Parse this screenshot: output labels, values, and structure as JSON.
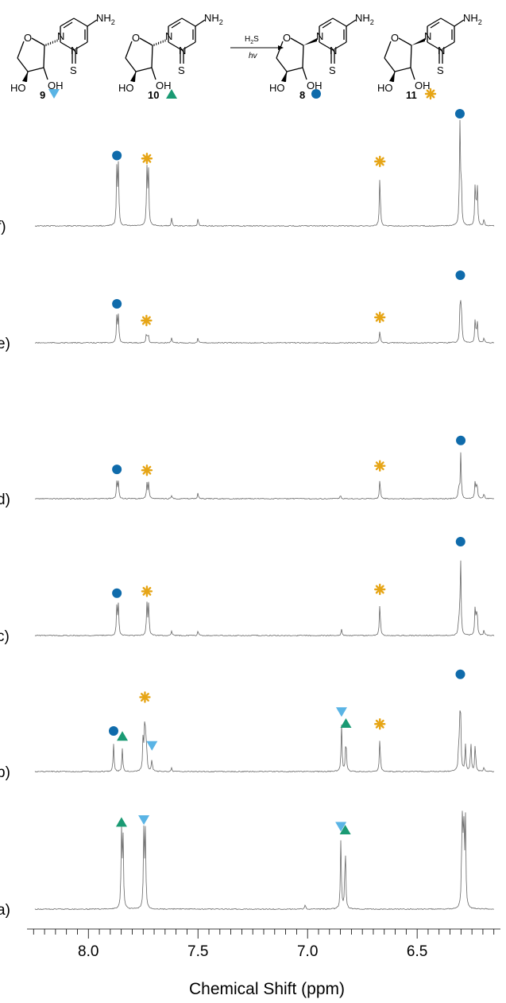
{
  "colors": {
    "compound_8": "#0f6bab",
    "compound_9": "#5ab4e5",
    "compound_10": "#1a9a73",
    "compound_11": "#e6a516"
  },
  "scheme": {
    "compounds": [
      {
        "id": "9",
        "label": "9",
        "marker": "triangle-down",
        "color": "#5ab4e5"
      },
      {
        "id": "10",
        "label": "10",
        "marker": "triangle-up",
        "color": "#1a9a73"
      },
      {
        "id": "8",
        "label": "8",
        "marker": "circle",
        "color": "#0f6bab"
      },
      {
        "id": "11",
        "label": "11",
        "marker": "asterisk",
        "color": "#e6a516"
      }
    ],
    "reagent_top": "H",
    "reagent_sub": "2",
    "reagent_s": "S",
    "reagent_bottom": "hv",
    "nh2": "NH",
    "nh2_sub": "2",
    "ring_n": "N",
    "ring_s": "S",
    "ring_o": "O",
    "oh": "OH",
    "ho": "HO"
  },
  "chart_data": {
    "type": "line",
    "title": "",
    "xlabel": "Chemical Shift (ppm)",
    "ylabel": "",
    "xlim": [
      8.28,
      6.12
    ],
    "x_reversed": true,
    "xticks": [
      8.0,
      7.5,
      7.0,
      6.5
    ],
    "xtick_labels": [
      "8.0",
      "7.5",
      "7.0",
      "6.5"
    ],
    "minor_tick_step": 0.05,
    "series": [
      {
        "name": "f)",
        "label": "f)",
        "peaks": [
          {
            "ppm": 7.87,
            "h": 0.58,
            "marker": "circle"
          },
          {
            "ppm": 7.863,
            "h": 0.58
          },
          {
            "ppm": 7.733,
            "h": 0.55,
            "marker": "asterisk"
          },
          {
            "ppm": 7.726,
            "h": 0.55
          },
          {
            "ppm": 7.62,
            "h": 0.08
          },
          {
            "ppm": 7.5,
            "h": 0.08
          },
          {
            "ppm": 6.67,
            "h": 0.52,
            "marker": "asterisk"
          },
          {
            "ppm": 6.305,
            "h": 1.0,
            "marker": "circle"
          },
          {
            "ppm": 6.299,
            "h": 0.45
          },
          {
            "ppm": 6.235,
            "h": 0.45
          },
          {
            "ppm": 6.226,
            "h": 0.43
          },
          {
            "ppm": 6.195,
            "h": 0.07
          }
        ]
      },
      {
        "name": "e)",
        "label": "e)",
        "peaks": [
          {
            "ppm": 7.87,
            "h": 0.33,
            "marker": "circle"
          },
          {
            "ppm": 7.863,
            "h": 0.33
          },
          {
            "ppm": 7.735,
            "h": 0.12,
            "marker": "asterisk"
          },
          {
            "ppm": 7.727,
            "h": 0.12
          },
          {
            "ppm": 7.62,
            "h": 0.06
          },
          {
            "ppm": 7.5,
            "h": 0.06
          },
          {
            "ppm": 6.67,
            "h": 0.16,
            "marker": "asterisk"
          },
          {
            "ppm": 6.303,
            "h": 0.69,
            "marker": "circle"
          },
          {
            "ppm": 6.297,
            "h": 0.3
          },
          {
            "ppm": 6.235,
            "h": 0.31
          },
          {
            "ppm": 6.226,
            "h": 0.29
          },
          {
            "ppm": 6.195,
            "h": 0.06
          }
        ]
      },
      {
        "name": "d)",
        "label": "d)",
        "peaks": [
          {
            "ppm": 7.87,
            "h": 0.19,
            "marker": "circle"
          },
          {
            "ppm": 7.863,
            "h": 0.19
          },
          {
            "ppm": 7.733,
            "h": 0.18,
            "marker": "asterisk"
          },
          {
            "ppm": 7.725,
            "h": 0.18
          },
          {
            "ppm": 7.62,
            "h": 0.04
          },
          {
            "ppm": 7.5,
            "h": 0.07
          },
          {
            "ppm": 6.85,
            "h": 0.04
          },
          {
            "ppm": 6.67,
            "h": 0.23,
            "marker": "asterisk"
          },
          {
            "ppm": 6.31,
            "h": 0.14
          },
          {
            "ppm": 6.301,
            "h": 0.52,
            "marker": "circle"
          },
          {
            "ppm": 6.235,
            "h": 0.21
          },
          {
            "ppm": 6.227,
            "h": 0.2
          },
          {
            "ppm": 6.195,
            "h": 0.06
          }
        ]
      },
      {
        "name": "c)",
        "label": "c)",
        "peaks": [
          {
            "ppm": 7.87,
            "h": 0.31,
            "marker": "circle"
          },
          {
            "ppm": 7.863,
            "h": 0.31
          },
          {
            "ppm": 7.733,
            "h": 0.33,
            "marker": "asterisk"
          },
          {
            "ppm": 7.725,
            "h": 0.33
          },
          {
            "ppm": 7.62,
            "h": 0.05
          },
          {
            "ppm": 7.5,
            "h": 0.05
          },
          {
            "ppm": 6.845,
            "h": 0.07
          },
          {
            "ppm": 6.67,
            "h": 0.35,
            "marker": "asterisk"
          },
          {
            "ppm": 6.31,
            "h": 0.15
          },
          {
            "ppm": 6.302,
            "h": 0.85,
            "marker": "circle"
          },
          {
            "ppm": 6.235,
            "h": 0.32
          },
          {
            "ppm": 6.227,
            "h": 0.31
          },
          {
            "ppm": 6.195,
            "h": 0.06
          }
        ]
      },
      {
        "name": "b)",
        "label": "b)",
        "peaks": [
          {
            "ppm": 7.885,
            "h": 0.28,
            "marker": "circle"
          },
          {
            "ppm": 7.845,
            "h": 0.23,
            "marker": "triangle-up"
          },
          {
            "ppm": 7.75,
            "h": 0.35
          },
          {
            "ppm": 7.742,
            "h": 0.62,
            "marker": "asterisk"
          },
          {
            "ppm": 7.735,
            "h": 0.28
          },
          {
            "ppm": 7.71,
            "h": 0.13,
            "marker": "triangle-down"
          },
          {
            "ppm": 7.62,
            "h": 0.04
          },
          {
            "ppm": 6.845,
            "h": 0.47,
            "marker": "triangle-down"
          },
          {
            "ppm": 6.825,
            "h": 0.36,
            "marker": "triangle-up"
          },
          {
            "ppm": 6.67,
            "h": 0.35,
            "marker": "asterisk"
          },
          {
            "ppm": 6.31,
            "h": 0.28
          },
          {
            "ppm": 6.303,
            "h": 0.85,
            "marker": "circle"
          },
          {
            "ppm": 6.28,
            "h": 0.28
          },
          {
            "ppm": 6.255,
            "h": 0.3
          },
          {
            "ppm": 6.235,
            "h": 0.29
          },
          {
            "ppm": 6.195,
            "h": 0.05
          }
        ]
      },
      {
        "name": "a)",
        "label": "a)",
        "peaks": [
          {
            "ppm": 7.849,
            "h": 0.78,
            "marker": "triangle-up"
          },
          {
            "ppm": 7.842,
            "h": 0.76
          },
          {
            "ppm": 7.747,
            "h": 0.8,
            "marker": "triangle-down"
          },
          {
            "ppm": 7.74,
            "h": 0.78
          },
          {
            "ppm": 7.01,
            "h": 0.05
          },
          {
            "ppm": 6.848,
            "h": 0.73,
            "marker": "triangle-down"
          },
          {
            "ppm": 6.828,
            "h": 0.7,
            "marker": "triangle-up"
          },
          {
            "ppm": 6.295,
            "h": 1.0
          },
          {
            "ppm": 6.288,
            "h": 0.98
          },
          {
            "ppm": 6.28,
            "h": 0.95
          }
        ]
      }
    ]
  }
}
